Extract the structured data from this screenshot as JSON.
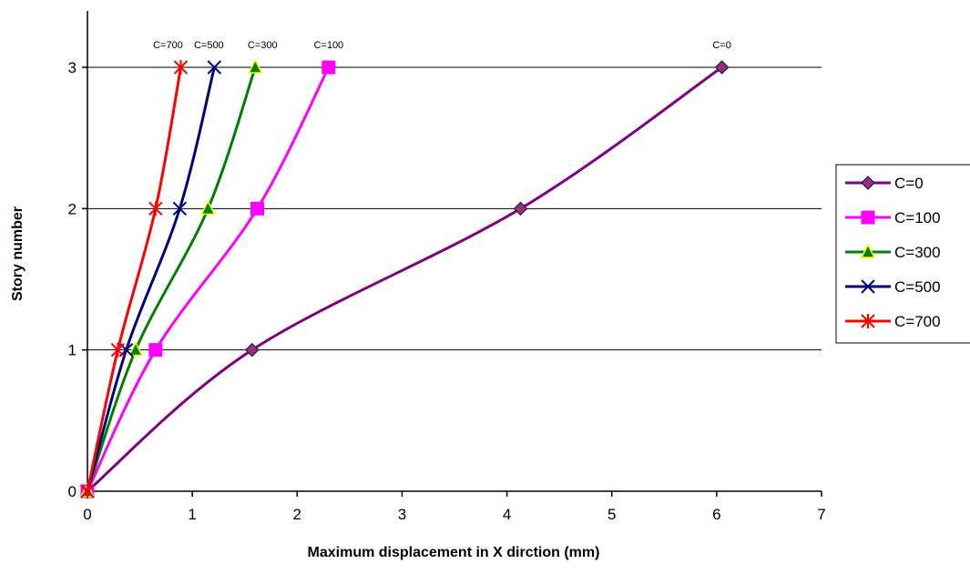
{
  "chart_data": {
    "type": "line",
    "title": "",
    "xlabel": "Maximum displacement in X dirction (mm)",
    "ylabel": "Story number",
    "xlim": [
      0,
      7
    ],
    "ylim": [
      0,
      3
    ],
    "xticks": [
      0,
      1,
      2,
      3,
      4,
      5,
      6,
      7
    ],
    "yticks": [
      0,
      1,
      2,
      3
    ],
    "grid": "horizontal",
    "legend_position": "right",
    "series": [
      {
        "name": "C=0",
        "color": "#800080",
        "marker": "diamond",
        "marker_fill": "#993366",
        "x": [
          0,
          1.57,
          4.13,
          6.05
        ],
        "y": [
          0,
          1,
          2,
          3
        ],
        "end_label": "C=0"
      },
      {
        "name": "C=100",
        "color": "#ff00ff",
        "marker": "square",
        "marker_fill": "#ff00ff",
        "x": [
          0,
          0.65,
          1.62,
          2.3
        ],
        "y": [
          0,
          1,
          2,
          3
        ],
        "end_label": "C=100"
      },
      {
        "name": "C=300",
        "color": "#008000",
        "marker": "triangle",
        "marker_fill": "#008000",
        "x": [
          0,
          0.46,
          1.15,
          1.6
        ],
        "y": [
          0,
          1,
          2,
          3
        ],
        "end_label": "C=300"
      },
      {
        "name": "C=500",
        "color": "#000080",
        "marker": "x",
        "marker_fill": "#000080",
        "x": [
          0,
          0.37,
          0.88,
          1.21
        ],
        "y": [
          0,
          1,
          2,
          3
        ],
        "end_label": "C=500"
      },
      {
        "name": "C=700",
        "color": "#ff0000",
        "marker": "star",
        "marker_fill": "#ff0000",
        "x": [
          0,
          0.29,
          0.65,
          0.89
        ],
        "y": [
          0,
          1,
          2,
          3
        ],
        "end_label": "C=700"
      }
    ]
  }
}
